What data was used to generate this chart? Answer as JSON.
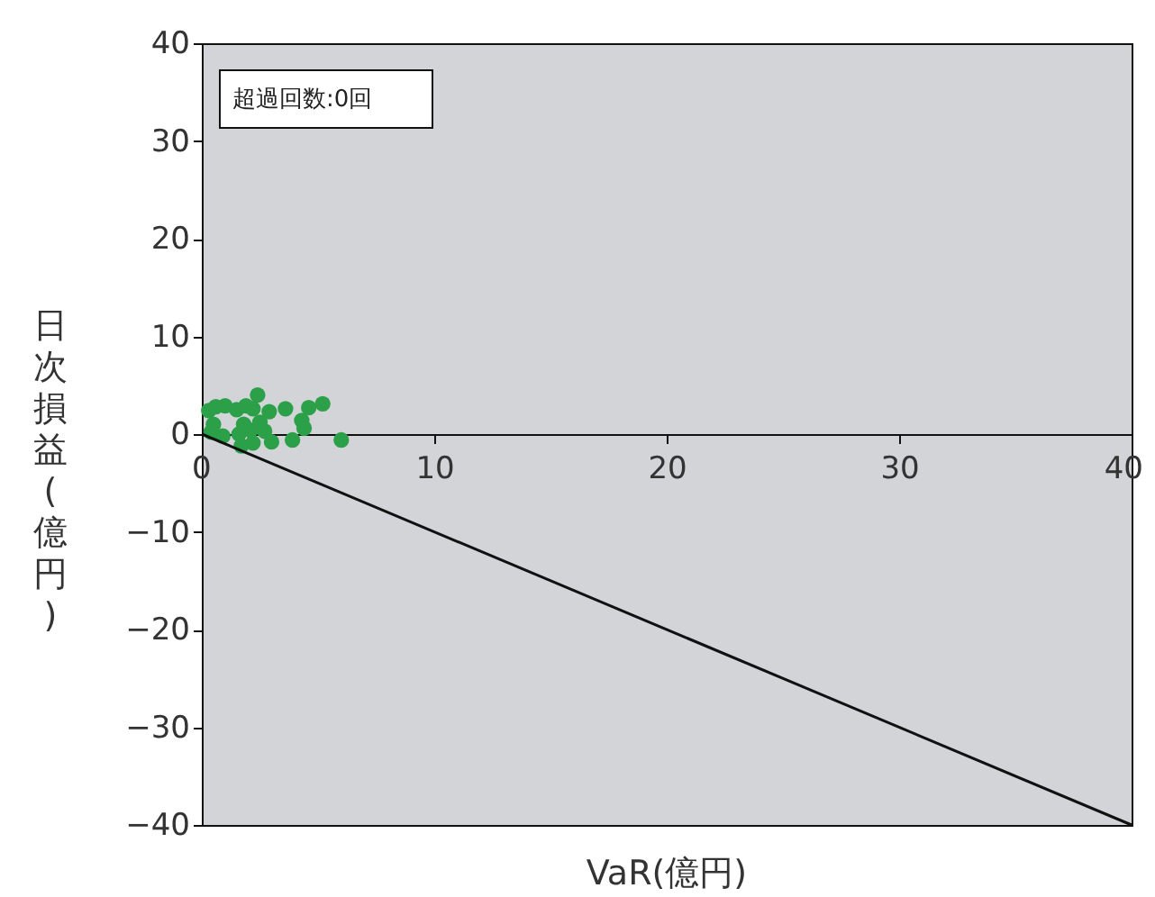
{
  "chart_data": {
    "type": "scatter",
    "xlabel": "VaR(億円)",
    "ylabel": "日次損益(億円)",
    "xlim": [
      0,
      40
    ],
    "ylim": [
      -40,
      40
    ],
    "xticks": [
      0,
      10,
      20,
      30,
      40
    ],
    "yticks": [
      40,
      30,
      20,
      10,
      0,
      {
        "value": -10,
        "label": "−10"
      },
      {
        "value": -20,
        "label": "−20"
      },
      {
        "value": -30,
        "label": "−30"
      },
      {
        "value": -40,
        "label": "−40"
      }
    ],
    "annotations": [
      "超過回数:0回"
    ],
    "series": [
      {
        "color": "#2ca048",
        "marker": "circle",
        "x": [
          0.3,
          0.5,
          0.6,
          1.0,
          1.5,
          1.6,
          1.8,
          2.2,
          2.4,
          2.5,
          2.7,
          2.9,
          3.0,
          3.6,
          4.4,
          4.6,
          5.2,
          6.0,
          0.4,
          0.9,
          1.7,
          1.9,
          2.1,
          3.9,
          4.3,
          2.2
        ],
        "values": [
          2.4,
          1.0,
          2.8,
          2.9,
          2.5,
          0.0,
          1.0,
          2.6,
          4.0,
          1.2,
          0.3,
          2.3,
          -0.8,
          2.6,
          0.6,
          2.7,
          3.1,
          -0.6,
          0.2,
          -0.2,
          -1.2,
          2.9,
          0.4,
          -0.6,
          1.4,
          -0.9
        ]
      },
      {
        "type": "line",
        "color": "#111111",
        "x": [
          0,
          40
        ],
        "values": [
          0,
          -40
        ]
      }
    ]
  }
}
